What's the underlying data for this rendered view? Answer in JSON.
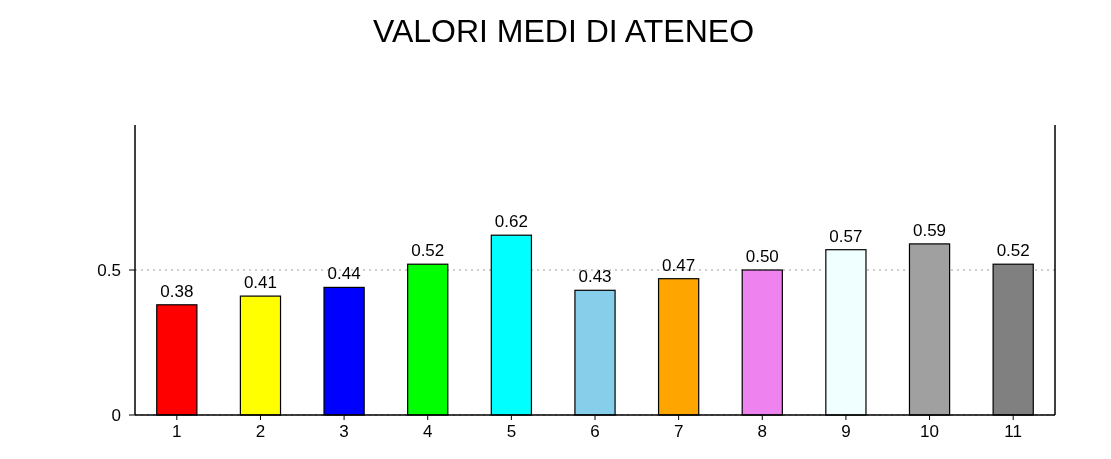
{
  "chart_data": {
    "type": "bar",
    "title": "VALORI MEDI DI ATENEO",
    "categories": [
      "1",
      "2",
      "3",
      "4",
      "5",
      "6",
      "7",
      "8",
      "9",
      "10",
      "11"
    ],
    "values": [
      0.38,
      0.41,
      0.44,
      0.52,
      0.62,
      0.43,
      0.47,
      0.5,
      0.57,
      0.59,
      0.52
    ],
    "value_labels": [
      "0.38",
      "0.41",
      "0.44",
      "0.52",
      "0.62",
      "0.43",
      "0.47",
      "0.50",
      "0.57",
      "0.59",
      "0.52"
    ],
    "colors": [
      "#ff0000",
      "#ffff00",
      "#0000ff",
      "#00ff00",
      "#00ffff",
      "#87ceeb",
      "#ffa500",
      "#ee82ee",
      "#f0ffff",
      "#a0a0a0",
      "#808080"
    ],
    "ylim": [
      0,
      1
    ],
    "yticks": [
      0,
      0.5
    ],
    "grid": "y"
  }
}
